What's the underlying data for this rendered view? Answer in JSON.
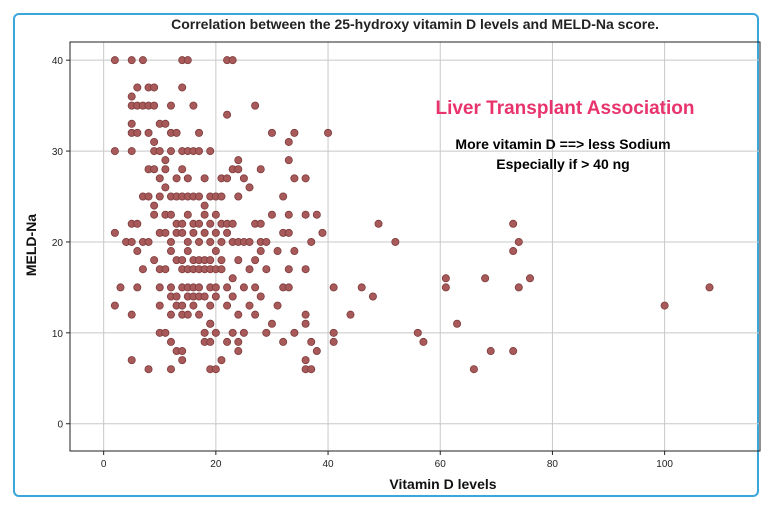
{
  "chart_data": {
    "type": "scatter",
    "title": "Correlation between the 25-hydroxy vitamin D levels and MELD-Na score.",
    "xlabel": "Vitamin D levels",
    "ylabel": "MELD-Na",
    "xlim": [
      -6,
      117
    ],
    "ylim": [
      -3,
      42
    ],
    "xticks": [
      0,
      20,
      40,
      60,
      80,
      100
    ],
    "yticks": [
      0,
      10,
      20,
      30,
      40
    ],
    "grid": true,
    "marker_color": "#a85a5a",
    "marker_edge": "#7d3b3b",
    "annotations": [
      "Liver Transplant Association",
      "More vitamin D ==> less Sodium",
      "Especially if > 40 ng"
    ],
    "points": [
      [
        2,
        40
      ],
      [
        5,
        40
      ],
      [
        7,
        40
      ],
      [
        14,
        40
      ],
      [
        15,
        40
      ],
      [
        22,
        40
      ],
      [
        23,
        40
      ],
      [
        5,
        36
      ],
      [
        6,
        37
      ],
      [
        8,
        37
      ],
      [
        9,
        37
      ],
      [
        14,
        37
      ],
      [
        22,
        34
      ],
      [
        27,
        35
      ],
      [
        5,
        35
      ],
      [
        6,
        35
      ],
      [
        7,
        35
      ],
      [
        8,
        35
      ],
      [
        9,
        35
      ],
      [
        12,
        35
      ],
      [
        16,
        35
      ],
      [
        5,
        33
      ],
      [
        5,
        32
      ],
      [
        6,
        32
      ],
      [
        8,
        32
      ],
      [
        9,
        31
      ],
      [
        10,
        33
      ],
      [
        11,
        33
      ],
      [
        12,
        32
      ],
      [
        13,
        32
      ],
      [
        17,
        32
      ],
      [
        30,
        32
      ],
      [
        34,
        32
      ],
      [
        40,
        32
      ],
      [
        33,
        31
      ],
      [
        2,
        30
      ],
      [
        5,
        30
      ],
      [
        9,
        30
      ],
      [
        10,
        30
      ],
      [
        11,
        29
      ],
      [
        12,
        30
      ],
      [
        14,
        30
      ],
      [
        15,
        30
      ],
      [
        16,
        30
      ],
      [
        17,
        30
      ],
      [
        19,
        30
      ],
      [
        24,
        29
      ],
      [
        28,
        28
      ],
      [
        33,
        29
      ],
      [
        8,
        28
      ],
      [
        9,
        28
      ],
      [
        10,
        27
      ],
      [
        11,
        28
      ],
      [
        13,
        27
      ],
      [
        14,
        28
      ],
      [
        15,
        27
      ],
      [
        18,
        27
      ],
      [
        21,
        27
      ],
      [
        22,
        27
      ],
      [
        23,
        28
      ],
      [
        24,
        28
      ],
      [
        25,
        27
      ],
      [
        34,
        27
      ],
      [
        36,
        27
      ],
      [
        7,
        25
      ],
      [
        8,
        25
      ],
      [
        9,
        24
      ],
      [
        10,
        25
      ],
      [
        11,
        26
      ],
      [
        12,
        25
      ],
      [
        13,
        25
      ],
      [
        14,
        25
      ],
      [
        15,
        25
      ],
      [
        16,
        25
      ],
      [
        17,
        25
      ],
      [
        18,
        24
      ],
      [
        19,
        25
      ],
      [
        20,
        25
      ],
      [
        21,
        25
      ],
      [
        24,
        25
      ],
      [
        26,
        26
      ],
      [
        32,
        25
      ],
      [
        5,
        22
      ],
      [
        6,
        22
      ],
      [
        9,
        23
      ],
      [
        11,
        23
      ],
      [
        12,
        23
      ],
      [
        13,
        22
      ],
      [
        14,
        22
      ],
      [
        15,
        23
      ],
      [
        16,
        22
      ],
      [
        17,
        22
      ],
      [
        18,
        23
      ],
      [
        19,
        22
      ],
      [
        20,
        23
      ],
      [
        21,
        22
      ],
      [
        22,
        22
      ],
      [
        23,
        22
      ],
      [
        27,
        22
      ],
      [
        28,
        22
      ],
      [
        30,
        23
      ],
      [
        33,
        23
      ],
      [
        36,
        23
      ],
      [
        38,
        23
      ],
      [
        49,
        22
      ],
      [
        73,
        22
      ],
      [
        2,
        21
      ],
      [
        4,
        20
      ],
      [
        5,
        20
      ],
      [
        7,
        20
      ],
      [
        8,
        20
      ],
      [
        10,
        21
      ],
      [
        11,
        21
      ],
      [
        12,
        20
      ],
      [
        13,
        21
      ],
      [
        14,
        21
      ],
      [
        15,
        20
      ],
      [
        16,
        21
      ],
      [
        17,
        20
      ],
      [
        18,
        21
      ],
      [
        19,
        20
      ],
      [
        20,
        21
      ],
      [
        21,
        20
      ],
      [
        22,
        21
      ],
      [
        23,
        20
      ],
      [
        24,
        20
      ],
      [
        25,
        20
      ],
      [
        26,
        20
      ],
      [
        28,
        20
      ],
      [
        29,
        20
      ],
      [
        32,
        21
      ],
      [
        33,
        21
      ],
      [
        37,
        20
      ],
      [
        39,
        21
      ],
      [
        52,
        20
      ],
      [
        74,
        20
      ],
      [
        6,
        19
      ],
      [
        9,
        18
      ],
      [
        12,
        19
      ],
      [
        13,
        18
      ],
      [
        14,
        18
      ],
      [
        15,
        19
      ],
      [
        16,
        18
      ],
      [
        17,
        18
      ],
      [
        18,
        18
      ],
      [
        19,
        18
      ],
      [
        20,
        19
      ],
      [
        21,
        18
      ],
      [
        24,
        18
      ],
      [
        27,
        18
      ],
      [
        28,
        19
      ],
      [
        31,
        19
      ],
      [
        34,
        19
      ],
      [
        73,
        19
      ],
      [
        7,
        17
      ],
      [
        10,
        17
      ],
      [
        11,
        17
      ],
      [
        14,
        17
      ],
      [
        15,
        17
      ],
      [
        16,
        17
      ],
      [
        17,
        17
      ],
      [
        18,
        17
      ],
      [
        19,
        17
      ],
      [
        20,
        17
      ],
      [
        21,
        17
      ],
      [
        23,
        16
      ],
      [
        26,
        17
      ],
      [
        29,
        17
      ],
      [
        33,
        17
      ],
      [
        36,
        17
      ],
      [
        61,
        16
      ],
      [
        68,
        16
      ],
      [
        76,
        16
      ],
      [
        3,
        15
      ],
      [
        6,
        15
      ],
      [
        10,
        15
      ],
      [
        12,
        15
      ],
      [
        14,
        15
      ],
      [
        15,
        15
      ],
      [
        16,
        15
      ],
      [
        17,
        15
      ],
      [
        19,
        15
      ],
      [
        20,
        15
      ],
      [
        22,
        15
      ],
      [
        25,
        15
      ],
      [
        27,
        15
      ],
      [
        32,
        15
      ],
      [
        33,
        15
      ],
      [
        41,
        15
      ],
      [
        46,
        15
      ],
      [
        61,
        15
      ],
      [
        74,
        15
      ],
      [
        108,
        15
      ],
      [
        12,
        14
      ],
      [
        13,
        14
      ],
      [
        15,
        14
      ],
      [
        16,
        14
      ],
      [
        17,
        14
      ],
      [
        18,
        14
      ],
      [
        20,
        14
      ],
      [
        23,
        14
      ],
      [
        28,
        14
      ],
      [
        48,
        14
      ],
      [
        2,
        13
      ],
      [
        10,
        13
      ],
      [
        13,
        13
      ],
      [
        14,
        13
      ],
      [
        16,
        13
      ],
      [
        19,
        13
      ],
      [
        22,
        13
      ],
      [
        26,
        13
      ],
      [
        31,
        13
      ],
      [
        100,
        13
      ],
      [
        5,
        12
      ],
      [
        12,
        12
      ],
      [
        14,
        12
      ],
      [
        15,
        12
      ],
      [
        17,
        12
      ],
      [
        19,
        11
      ],
      [
        24,
        12
      ],
      [
        27,
        12
      ],
      [
        30,
        11
      ],
      [
        36,
        12
      ],
      [
        44,
        12
      ],
      [
        63,
        11
      ],
      [
        10,
        10
      ],
      [
        11,
        10
      ],
      [
        18,
        10
      ],
      [
        19,
        11
      ],
      [
        20,
        10
      ],
      [
        23,
        10
      ],
      [
        25,
        10
      ],
      [
        29,
        10
      ],
      [
        34,
        10
      ],
      [
        36,
        11
      ],
      [
        41,
        10
      ],
      [
        56,
        10
      ],
      [
        12,
        9
      ],
      [
        18,
        9
      ],
      [
        19,
        9
      ],
      [
        22,
        9
      ],
      [
        24,
        9
      ],
      [
        32,
        9
      ],
      [
        37,
        9
      ],
      [
        41,
        9
      ],
      [
        57,
        9
      ],
      [
        13,
        8
      ],
      [
        14,
        8
      ],
      [
        24,
        8
      ],
      [
        36,
        7
      ],
      [
        38,
        8
      ],
      [
        69,
        8
      ],
      [
        73,
        8
      ],
      [
        5,
        7
      ],
      [
        14,
        7
      ],
      [
        21,
        7
      ],
      [
        36,
        6
      ],
      [
        37,
        6
      ],
      [
        8,
        6
      ],
      [
        12,
        6
      ],
      [
        19,
        6
      ],
      [
        20,
        6
      ],
      [
        66,
        6
      ]
    ]
  }
}
